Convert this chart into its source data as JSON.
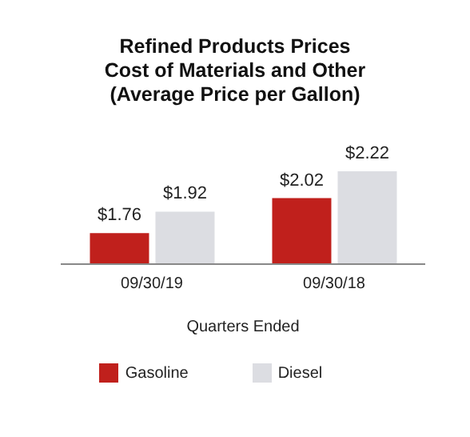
{
  "chart_data": {
    "type": "bar",
    "title": "Refined Products Prices\nCost of Materials and Other\n(Average Price per Gallon)",
    "xlabel": "Quarters Ended",
    "categories": [
      "09/30/19",
      "09/30/18"
    ],
    "series": [
      {
        "name": "Gasoline",
        "color": "#c0201c",
        "values": [
          1.76,
          2.02
        ],
        "value_labels": [
          "$1.76",
          "$2.02"
        ]
      },
      {
        "name": "Diesel",
        "color": "#dcdde2",
        "values": [
          1.92,
          2.22
        ],
        "value_labels": [
          "$1.92",
          "$2.22"
        ]
      }
    ],
    "ylim": [
      1.53,
      2.22
    ],
    "tick_labels": "x",
    "legend": "bottom"
  }
}
